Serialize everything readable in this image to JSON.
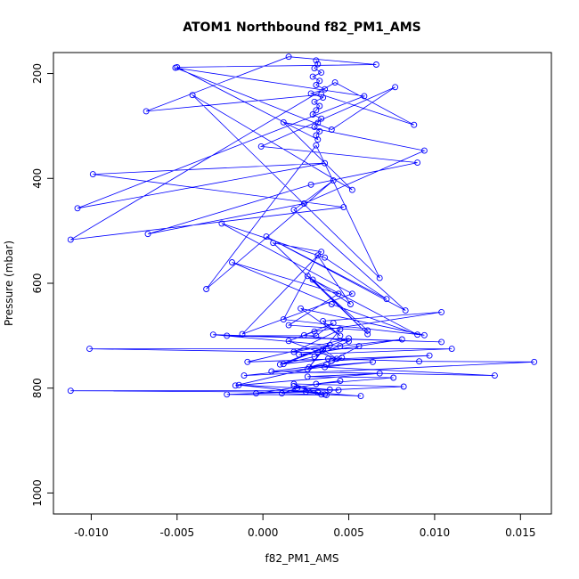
{
  "chart_data": {
    "type": "line",
    "title": "ATOM1 Northbound f82_PM1_AMS",
    "xlabel": "f82_PM1_AMS",
    "ylabel": "Pressure (mbar)",
    "xlim": [
      -0.0122,
      0.0168
    ],
    "ylim": [
      160,
      1040
    ],
    "y_reversed": true,
    "x_ticks": [
      -0.01,
      -0.005,
      0.0,
      0.005,
      0.01,
      0.015
    ],
    "x_tick_labels": [
      "-0.010",
      "-0.005",
      "0.000",
      "0.005",
      "0.010",
      "0.015"
    ],
    "y_ticks": [
      200,
      400,
      600,
      800,
      1000
    ],
    "y_tick_labels": [
      "200",
      "400",
      "600",
      "800",
      "1000"
    ],
    "grid": false,
    "legend": "none",
    "marker": "open-circle",
    "color": "#0000ff",
    "series": [
      {
        "x": [
          0.0031,
          0.0032,
          0.003,
          0.0034,
          0.0029,
          0.0033,
          0.0031,
          0.0036,
          0.0028,
          0.0035,
          0.003,
          0.0033,
          0.0031,
          0.0029,
          0.0034,
          0.0032,
          0.003,
          0.0033,
          0.0031,
          0.0032,
          -0.005,
          0.0066,
          0.0015,
          -0.0068,
          0.0034,
          0.0088,
          0.0042,
          -0.0112,
          0.0047,
          -0.0099,
          0.0036,
          -0.0108,
          0.0059,
          -0.0051,
          0.004,
          0.0077,
          -0.0001,
          0.009,
          0.0028,
          -0.0067,
          0.0024,
          0.0094,
          0.0012,
          0.0052,
          -0.0041,
          0.0068,
          0.0031,
          -0.0033,
          0.0041,
          0.0018,
          0.0083,
          0.0002,
          0.0072,
          0.0036,
          -0.0024,
          0.0052,
          -0.0012,
          0.0034,
          0.0006,
          0.0061,
          0.0029,
          0.009,
          0.004,
          -0.0018,
          0.0044,
          0.0015,
          0.0061,
          0.0026,
          0.0051,
          0.0032,
          0.0012,
          0.0094,
          0.0022,
          0.0045,
          0.0035,
          0.0104,
          0.003,
          0.0015,
          0.0043,
          0.0035,
          0.0026,
          0.0045,
          0.0018,
          0.0039,
          0.001,
          0.003,
          0.005,
          0.0024,
          0.0041,
          0.0031,
          -0.0021,
          0.0104,
          -0.0029,
          0.0045,
          0.0081,
          0.0032,
          -0.0101,
          0.011,
          0.0021,
          0.0056,
          0.004,
          0.0097,
          -0.0009,
          0.005,
          0.0012,
          0.0038,
          0.0091,
          0.0158,
          -0.0011,
          0.0064,
          0.0027,
          0.0046,
          0.0036,
          0.0135,
          0.0005,
          0.0037,
          -0.0016,
          0.0068,
          0.0026,
          0.0076,
          0.0031,
          0.0045,
          -0.0004,
          0.0082,
          0.0018,
          0.0032,
          -0.0112,
          0.0044,
          0.002,
          0.0011,
          0.0037,
          -0.0021,
          0.0025,
          0.0057,
          0.0034,
          0.0018,
          0.0039,
          -0.0014,
          0.0036
        ],
        "y": [
          175,
          182,
          190,
          198,
          206,
          214,
          222,
          230,
          238,
          246,
          254,
          262,
          270,
          278,
          286,
          294,
          302,
          310,
          318,
          326,
          188,
          183,
          168,
          272,
          240,
          298,
          217,
          517,
          455,
          392,
          371,
          457,
          243,
          189,
          307,
          226,
          339,
          370,
          412,
          506,
          448,
          347,
          293,
          422,
          241,
          590,
          337,
          611,
          404,
          460,
          652,
          511,
          630,
          551,
          486,
          620,
          697,
          540,
          523,
          697,
          593,
          698,
          640,
          560,
          620,
          680,
          690,
          586,
          640,
          547,
          669,
          699,
          648,
          700,
          672,
          655,
          692,
          710,
          744,
          726,
          764,
          688,
          731,
          718,
          755,
          740,
          711,
          699,
          676,
          700,
          700,
          712,
          698,
          720,
          707,
          732,
          725,
          725,
          736,
          720,
          748,
          738,
          750,
          705,
          754,
          744,
          749,
          750,
          776,
          750,
          760,
          742,
          760,
          776,
          768,
          755,
          795,
          772,
          778,
          780,
          792,
          786,
          810,
          797,
          792,
          808,
          805,
          804,
          800,
          810,
          813,
          812,
          807,
          815,
          812,
          796,
          803,
          794,
          812
        ]
      }
    ]
  }
}
